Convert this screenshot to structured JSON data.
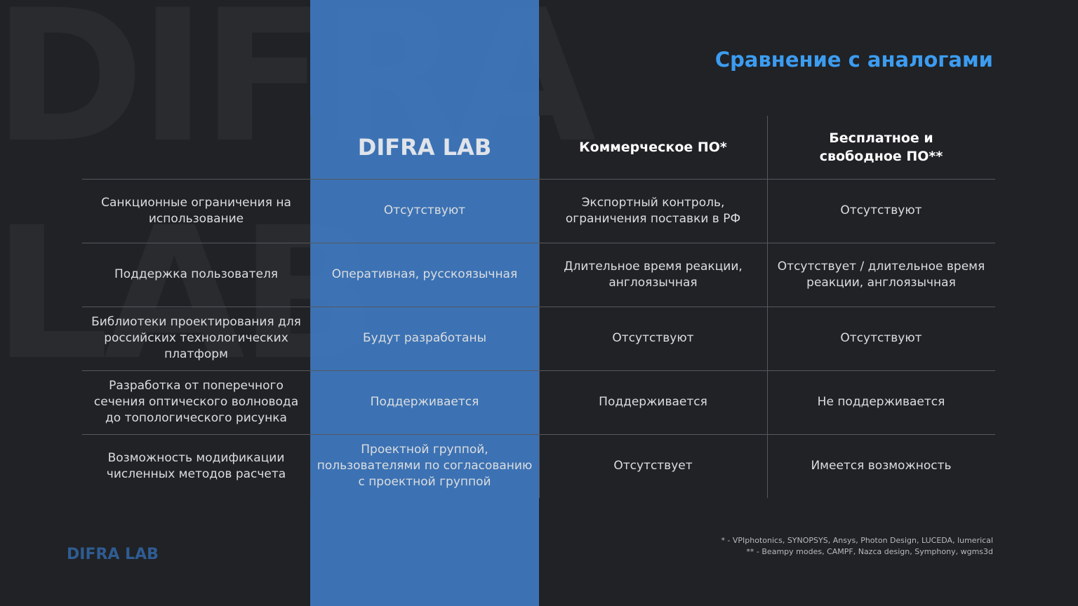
{
  "watermark": [
    "DIFRA",
    "LAB"
  ],
  "title": "Сравнение с аналогами",
  "table": {
    "columns": [
      "DIFRA LAB",
      "Коммерческое ПО*",
      "Бесплатное и свободное ПО**"
    ],
    "rows": [
      [
        "Санкционные ограничения на использование",
        "Отсутствуют",
        "Экспортный контроль, ограничения поставки в РФ",
        "Отсутствуют"
      ],
      [
        "Поддержка пользователя",
        "Оперативная, русскоязычная",
        "Длительное время реакции, англоязычная",
        "Отсутствует / длительное время реакции, англоязычная"
      ],
      [
        "Библиотеки проектирования для российских технологических платформ",
        "Будут разработаны",
        "Отсутствуют",
        "Отсутствуют"
      ],
      [
        "Разработка от поперечного сечения оптического волновода до топологического рисунка",
        "Поддерживается",
        "Поддерживается",
        "Не поддерживается"
      ],
      [
        "Возможность модификации численных методов расчета",
        "Проектной группой, пользователями по согласованию с проектной группой",
        "Отсутствует",
        "Имеется возможность"
      ]
    ]
  },
  "footnotes": [
    "* - VPIphotonics, SYNOPSYS, Ansys, Photon Design, LUCEDA, lumerical",
    "** - Beampy modes, CAMPF, Nazca design, Symphony, wgms3d"
  ],
  "logo": "DIFRA LAB"
}
